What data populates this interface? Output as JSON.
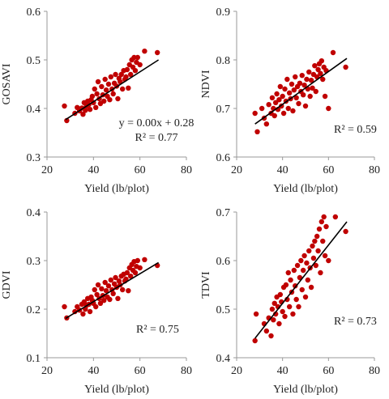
{
  "chart_data": [
    {
      "type": "scatter",
      "xlabel": "Yield (lb/plot)",
      "ylabel": "GOSAVI",
      "xlim": [
        20,
        80
      ],
      "ylim": [
        0.3,
        0.6
      ],
      "xticks": [
        20,
        40,
        60,
        80
      ],
      "yticks": [
        0.3,
        0.4,
        0.5,
        0.6
      ],
      "xtick_labels": [
        "20",
        "40",
        "60",
        "80"
      ],
      "ytick_labels": [
        "0.3",
        "0.4",
        "0.5",
        "0.6"
      ],
      "annotations": [
        "y = 0.00x + 0.28",
        "R² = 0.77"
      ],
      "trendline": {
        "x": [
          28,
          68
        ],
        "y": [
          0.377,
          0.5
        ]
      },
      "marker_color": "#c00000",
      "line_color": "#000000",
      "grid": false,
      "points": [
        {
          "x": 27.5,
          "y": 0.405
        },
        {
          "x": 28.5,
          "y": 0.375
        },
        {
          "x": 32,
          "y": 0.39
        },
        {
          "x": 33,
          "y": 0.402
        },
        {
          "x": 34,
          "y": 0.395
        },
        {
          "x": 35,
          "y": 0.401
        },
        {
          "x": 35.5,
          "y": 0.388
        },
        {
          "x": 36,
          "y": 0.412
        },
        {
          "x": 36.5,
          "y": 0.396
        },
        {
          "x": 37,
          "y": 0.405
        },
        {
          "x": 37.5,
          "y": 0.415
        },
        {
          "x": 38,
          "y": 0.408
        },
        {
          "x": 38.5,
          "y": 0.398
        },
        {
          "x": 39,
          "y": 0.418
        },
        {
          "x": 39.5,
          "y": 0.425
        },
        {
          "x": 40,
          "y": 0.412
        },
        {
          "x": 40.5,
          "y": 0.44
        },
        {
          "x": 41,
          "y": 0.402
        },
        {
          "x": 41.5,
          "y": 0.43
        },
        {
          "x": 42,
          "y": 0.455
        },
        {
          "x": 42.5,
          "y": 0.42
        },
        {
          "x": 43,
          "y": 0.41
        },
        {
          "x": 43.5,
          "y": 0.445
        },
        {
          "x": 44,
          "y": 0.428
        },
        {
          "x": 44.5,
          "y": 0.415
        },
        {
          "x": 45,
          "y": 0.46
        },
        {
          "x": 45.5,
          "y": 0.438
        },
        {
          "x": 46,
          "y": 0.425
        },
        {
          "x": 46.5,
          "y": 0.45
        },
        {
          "x": 47,
          "y": 0.418
        },
        {
          "x": 47.5,
          "y": 0.465
        },
        {
          "x": 48,
          "y": 0.44
        },
        {
          "x": 48.5,
          "y": 0.43
        },
        {
          "x": 49,
          "y": 0.452
        },
        {
          "x": 49.5,
          "y": 0.47
        },
        {
          "x": 50,
          "y": 0.446
        },
        {
          "x": 50.5,
          "y": 0.42
        },
        {
          "x": 51,
          "y": 0.462
        },
        {
          "x": 51.5,
          "y": 0.455
        },
        {
          "x": 52,
          "y": 0.47
        },
        {
          "x": 52.5,
          "y": 0.44
        },
        {
          "x": 53,
          "y": 0.478
        },
        {
          "x": 53.5,
          "y": 0.46
        },
        {
          "x": 54,
          "y": 0.465
        },
        {
          "x": 54.5,
          "y": 0.48
        },
        {
          "x": 55,
          "y": 0.442
        },
        {
          "x": 55.5,
          "y": 0.49
        },
        {
          "x": 56,
          "y": 0.47
        },
        {
          "x": 56.5,
          "y": 0.5
        },
        {
          "x": 57,
          "y": 0.485
        },
        {
          "x": 57.5,
          "y": 0.505
        },
        {
          "x": 58,
          "y": 0.478
        },
        {
          "x": 58.5,
          "y": 0.495
        },
        {
          "x": 59,
          "y": 0.505
        },
        {
          "x": 60,
          "y": 0.49
        },
        {
          "x": 62,
          "y": 0.518
        },
        {
          "x": 67.5,
          "y": 0.515
        }
      ]
    },
    {
      "type": "scatter",
      "xlabel": "Yield (lb/plot)",
      "ylabel": "NDVI",
      "xlim": [
        20,
        80
      ],
      "ylim": [
        0.6,
        0.9
      ],
      "xticks": [
        20,
        40,
        60,
        80
      ],
      "yticks": [
        0.6,
        0.7,
        0.8,
        0.9
      ],
      "xtick_labels": [
        "20",
        "40",
        "60",
        "80"
      ],
      "ytick_labels": [
        "0.6",
        "0.7",
        "0.8",
        "0.9"
      ],
      "annotations": [
        "R² = 0.59"
      ],
      "trendline": {
        "x": [
          28,
          68
        ],
        "y": [
          0.668,
          0.803
        ]
      },
      "marker_color": "#c00000",
      "line_color": "#000000",
      "grid": false,
      "points": [
        {
          "x": 28,
          "y": 0.69
        },
        {
          "x": 29,
          "y": 0.652
        },
        {
          "x": 31,
          "y": 0.7
        },
        {
          "x": 32,
          "y": 0.68
        },
        {
          "x": 33,
          "y": 0.668
        },
        {
          "x": 34,
          "y": 0.708
        },
        {
          "x": 35,
          "y": 0.69
        },
        {
          "x": 35.5,
          "y": 0.722
        },
        {
          "x": 36,
          "y": 0.7
        },
        {
          "x": 36.5,
          "y": 0.685
        },
        {
          "x": 37,
          "y": 0.712
        },
        {
          "x": 37.5,
          "y": 0.73
        },
        {
          "x": 38,
          "y": 0.698
        },
        {
          "x": 38.5,
          "y": 0.718
        },
        {
          "x": 39,
          "y": 0.745
        },
        {
          "x": 39.5,
          "y": 0.705
        },
        {
          "x": 40,
          "y": 0.725
        },
        {
          "x": 40.5,
          "y": 0.69
        },
        {
          "x": 41,
          "y": 0.74
        },
        {
          "x": 41.5,
          "y": 0.715
        },
        {
          "x": 42,
          "y": 0.76
        },
        {
          "x": 42.5,
          "y": 0.7
        },
        {
          "x": 43,
          "y": 0.732
        },
        {
          "x": 43.5,
          "y": 0.72
        },
        {
          "x": 44,
          "y": 0.75
        },
        {
          "x": 44.5,
          "y": 0.695
        },
        {
          "x": 45,
          "y": 0.738
        },
        {
          "x": 45.5,
          "y": 0.765
        },
        {
          "x": 46,
          "y": 0.722
        },
        {
          "x": 46.5,
          "y": 0.745
        },
        {
          "x": 47,
          "y": 0.71
        },
        {
          "x": 47.5,
          "y": 0.752
        },
        {
          "x": 48,
          "y": 0.735
        },
        {
          "x": 48.5,
          "y": 0.768
        },
        {
          "x": 49,
          "y": 0.728
        },
        {
          "x": 49.5,
          "y": 0.748
        },
        {
          "x": 50,
          "y": 0.705
        },
        {
          "x": 50.5,
          "y": 0.76
        },
        {
          "x": 51,
          "y": 0.74
        },
        {
          "x": 51.5,
          "y": 0.775
        },
        {
          "x": 52,
          "y": 0.725
        },
        {
          "x": 52.5,
          "y": 0.758
        },
        {
          "x": 53,
          "y": 0.742
        },
        {
          "x": 53.5,
          "y": 0.77
        },
        {
          "x": 54,
          "y": 0.788
        },
        {
          "x": 54.5,
          "y": 0.735
        },
        {
          "x": 55,
          "y": 0.765
        },
        {
          "x": 55.5,
          "y": 0.78
        },
        {
          "x": 56,
          "y": 0.792
        },
        {
          "x": 56.5,
          "y": 0.772
        },
        {
          "x": 57,
          "y": 0.798
        },
        {
          "x": 57.5,
          "y": 0.76
        },
        {
          "x": 58,
          "y": 0.785
        },
        {
          "x": 58.5,
          "y": 0.725
        },
        {
          "x": 59,
          "y": 0.778
        },
        {
          "x": 60,
          "y": 0.7
        },
        {
          "x": 62,
          "y": 0.815
        },
        {
          "x": 67.5,
          "y": 0.785
        }
      ]
    },
    {
      "type": "scatter",
      "xlabel": "Yield (lb/plot)",
      "ylabel": "GDVI",
      "xlim": [
        20,
        80
      ],
      "ylim": [
        0.1,
        0.4
      ],
      "xticks": [
        20,
        40,
        60,
        80
      ],
      "yticks": [
        0.1,
        0.2,
        0.3,
        0.4
      ],
      "xtick_labels": [
        "20",
        "40",
        "60",
        "80"
      ],
      "ytick_labels": [
        "0.1",
        "0.2",
        "0.3",
        "0.4"
      ],
      "annotations": [
        "R² = 0.75"
      ],
      "trendline": {
        "x": [
          28,
          68
        ],
        "y": [
          0.181,
          0.296
        ]
      },
      "marker_color": "#c00000",
      "line_color": "#000000",
      "grid": false,
      "points": [
        {
          "x": 27.5,
          "y": 0.205
        },
        {
          "x": 28.5,
          "y": 0.182
        },
        {
          "x": 32,
          "y": 0.195
        },
        {
          "x": 33,
          "y": 0.205
        },
        {
          "x": 34,
          "y": 0.198
        },
        {
          "x": 35,
          "y": 0.21
        },
        {
          "x": 35.5,
          "y": 0.19
        },
        {
          "x": 36,
          "y": 0.215
        },
        {
          "x": 36.5,
          "y": 0.2
        },
        {
          "x": 37,
          "y": 0.208
        },
        {
          "x": 37.5,
          "y": 0.222
        },
        {
          "x": 38,
          "y": 0.21
        },
        {
          "x": 38.5,
          "y": 0.195
        },
        {
          "x": 39,
          "y": 0.225
        },
        {
          "x": 39.5,
          "y": 0.218
        },
        {
          "x": 40,
          "y": 0.212
        },
        {
          "x": 40.5,
          "y": 0.24
        },
        {
          "x": 41,
          "y": 0.205
        },
        {
          "x": 41.5,
          "y": 0.23
        },
        {
          "x": 42,
          "y": 0.25
        },
        {
          "x": 42.5,
          "y": 0.222
        },
        {
          "x": 43,
          "y": 0.212
        },
        {
          "x": 43.5,
          "y": 0.242
        },
        {
          "x": 44,
          "y": 0.228
        },
        {
          "x": 44.5,
          "y": 0.218
        },
        {
          "x": 45,
          "y": 0.255
        },
        {
          "x": 45.5,
          "y": 0.238
        },
        {
          "x": 46,
          "y": 0.225
        },
        {
          "x": 46.5,
          "y": 0.248
        },
        {
          "x": 47,
          "y": 0.22
        },
        {
          "x": 47.5,
          "y": 0.26
        },
        {
          "x": 48,
          "y": 0.24
        },
        {
          "x": 48.5,
          "y": 0.232
        },
        {
          "x": 49,
          "y": 0.252
        },
        {
          "x": 49.5,
          "y": 0.265
        },
        {
          "x": 50,
          "y": 0.245
        },
        {
          "x": 50.5,
          "y": 0.222
        },
        {
          "x": 51,
          "y": 0.258
        },
        {
          "x": 51.5,
          "y": 0.25
        },
        {
          "x": 52,
          "y": 0.268
        },
        {
          "x": 52.5,
          "y": 0.24
        },
        {
          "x": 53,
          "y": 0.272
        },
        {
          "x": 53.5,
          "y": 0.258
        },
        {
          "x": 54,
          "y": 0.262
        },
        {
          "x": 54.5,
          "y": 0.275
        },
        {
          "x": 55,
          "y": 0.238
        },
        {
          "x": 55.5,
          "y": 0.285
        },
        {
          "x": 56,
          "y": 0.268
        },
        {
          "x": 56.5,
          "y": 0.292
        },
        {
          "x": 57,
          "y": 0.28
        },
        {
          "x": 57.5,
          "y": 0.298
        },
        {
          "x": 58,
          "y": 0.275
        },
        {
          "x": 58.5,
          "y": 0.288
        },
        {
          "x": 59,
          "y": 0.3
        },
        {
          "x": 60,
          "y": 0.285
        },
        {
          "x": 62,
          "y": 0.302
        },
        {
          "x": 67.5,
          "y": 0.29
        }
      ]
    },
    {
      "type": "scatter",
      "xlabel": "Yield (lb/plot)",
      "ylabel": "TDVI",
      "xlim": [
        20,
        80
      ],
      "ylim": [
        0.4,
        0.7
      ],
      "xticks": [
        20,
        40,
        60,
        80
      ],
      "yticks": [
        0.4,
        0.5,
        0.6,
        0.7
      ],
      "xtick_labels": [
        "20",
        "40",
        "60",
        "80"
      ],
      "ytick_labels": [
        "0.4",
        "0.5",
        "0.6",
        "0.7"
      ],
      "annotations": [
        "R² = 0.73"
      ],
      "trendline": {
        "x": [
          28,
          68
        ],
        "y": [
          0.44,
          0.68
        ]
      },
      "marker_color": "#c00000",
      "line_color": "#000000",
      "grid": false,
      "points": [
        {
          "x": 28,
          "y": 0.435
        },
        {
          "x": 28.5,
          "y": 0.49
        },
        {
          "x": 32,
          "y": 0.47
        },
        {
          "x": 33,
          "y": 0.455
        },
        {
          "x": 34,
          "y": 0.482
        },
        {
          "x": 35,
          "y": 0.445
        },
        {
          "x": 35.5,
          "y": 0.5
        },
        {
          "x": 36,
          "y": 0.478
        },
        {
          "x": 36.5,
          "y": 0.512
        },
        {
          "x": 37,
          "y": 0.49
        },
        {
          "x": 37.5,
          "y": 0.525
        },
        {
          "x": 38,
          "y": 0.505
        },
        {
          "x": 38.5,
          "y": 0.47
        },
        {
          "x": 39,
          "y": 0.53
        },
        {
          "x": 39.5,
          "y": 0.515
        },
        {
          "x": 40,
          "y": 0.495
        },
        {
          "x": 40.5,
          "y": 0.545
        },
        {
          "x": 41,
          "y": 0.485
        },
        {
          "x": 41.5,
          "y": 0.55
        },
        {
          "x": 42,
          "y": 0.52
        },
        {
          "x": 42.5,
          "y": 0.575
        },
        {
          "x": 43,
          "y": 0.505
        },
        {
          "x": 43.5,
          "y": 0.56
        },
        {
          "x": 44,
          "y": 0.535
        },
        {
          "x": 44.5,
          "y": 0.49
        },
        {
          "x": 45,
          "y": 0.58
        },
        {
          "x": 45.5,
          "y": 0.548
        },
        {
          "x": 46,
          "y": 0.52
        },
        {
          "x": 46.5,
          "y": 0.59
        },
        {
          "x": 47,
          "y": 0.505
        },
        {
          "x": 47.5,
          "y": 0.565
        },
        {
          "x": 48,
          "y": 0.6
        },
        {
          "x": 48.5,
          "y": 0.54
        },
        {
          "x": 49,
          "y": 0.58
        },
        {
          "x": 49.5,
          "y": 0.61
        },
        {
          "x": 50,
          "y": 0.525
        },
        {
          "x": 50.5,
          "y": 0.595
        },
        {
          "x": 51,
          "y": 0.56
        },
        {
          "x": 51.5,
          "y": 0.62
        },
        {
          "x": 52,
          "y": 0.585
        },
        {
          "x": 52.5,
          "y": 0.545
        },
        {
          "x": 53,
          "y": 0.63
        },
        {
          "x": 53.5,
          "y": 0.605
        },
        {
          "x": 54,
          "y": 0.64
        },
        {
          "x": 54.5,
          "y": 0.59
        },
        {
          "x": 55,
          "y": 0.65
        },
        {
          "x": 55.5,
          "y": 0.62
        },
        {
          "x": 56,
          "y": 0.665
        },
        {
          "x": 56.5,
          "y": 0.575
        },
        {
          "x": 57,
          "y": 0.68
        },
        {
          "x": 57.5,
          "y": 0.64
        },
        {
          "x": 58,
          "y": 0.69
        },
        {
          "x": 58.5,
          "y": 0.61
        },
        {
          "x": 59,
          "y": 0.67
        },
        {
          "x": 60,
          "y": 0.6
        },
        {
          "x": 63,
          "y": 0.69
        },
        {
          "x": 67.5,
          "y": 0.66
        }
      ]
    }
  ]
}
